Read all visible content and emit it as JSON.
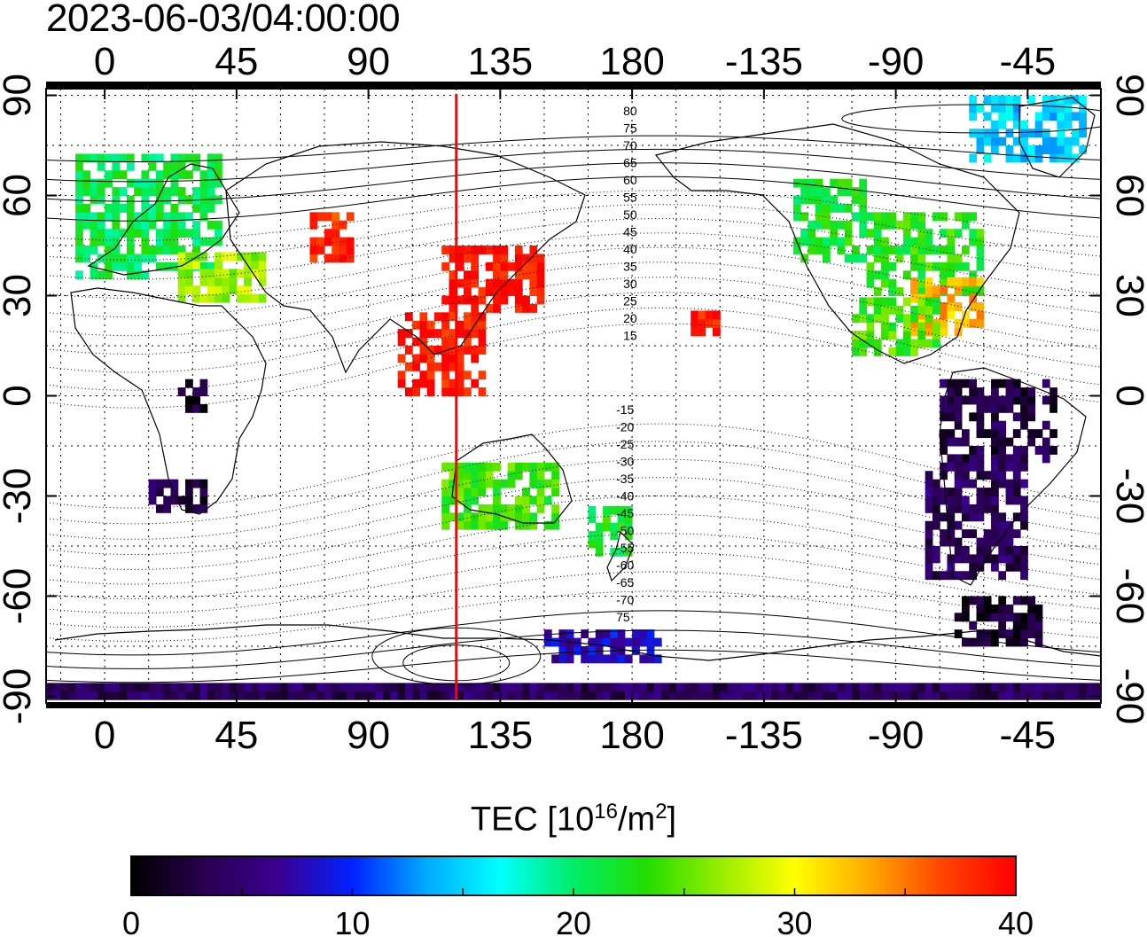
{
  "title": "2023-06-03/04:00:00",
  "map": {
    "type": "global-tec-map",
    "lon_ticks_top": [
      "0",
      "45",
      "90",
      "135",
      "180",
      "-135",
      "-90",
      "-45"
    ],
    "lon_ticks_bottom": [
      "0",
      "45",
      "90",
      "135",
      "180",
      "-135",
      "-90",
      "-45"
    ],
    "lat_ticks_left": [
      "90",
      "60",
      "30",
      "0",
      "-30",
      "-60",
      "-90"
    ],
    "lat_ticks_right": [
      "90",
      "60",
      "30",
      "0",
      "-30",
      "-60",
      "-90"
    ],
    "lon_ticks_values": [
      0,
      45,
      90,
      135,
      180,
      225,
      270,
      315
    ],
    "lat_ticks_values": [
      90,
      60,
      30,
      0,
      -30,
      -60,
      -90
    ],
    "lon_range": [
      -20,
      340
    ],
    "lat_range": [
      -92,
      92
    ],
    "grid": "dotted, every 15 degrees",
    "marker_line_lon": 120,
    "marker_line_color": "#ff0000",
    "contour_labels_north": [
      "80",
      "75",
      "70",
      "65",
      "60",
      "55",
      "50",
      "45",
      "40",
      "35",
      "30",
      "25",
      "20",
      "15"
    ],
    "contour_labels_south": [
      "-15",
      "-20",
      "-25",
      "-30",
      "-35",
      "-40",
      "-45",
      "-50",
      "-55",
      "-60",
      "-65",
      "-70",
      "75"
    ]
  },
  "colorbar": {
    "title_main": "TEC  [10",
    "title_exp": "16",
    "title_unit": "/m",
    "title_unit_exp": "2",
    "title_close": "]",
    "min": 0,
    "max": 40,
    "tick_labels": [
      "0",
      "10",
      "20",
      "30",
      "40"
    ],
    "colors": [
      "#000000",
      "#2a0050",
      "#3a0090",
      "#0022ff",
      "#00aaff",
      "#00ffff",
      "#00ee66",
      "#22dd00",
      "#99ee00",
      "#ffff00",
      "#ffaa00",
      "#ff4400",
      "#ff0000"
    ]
  },
  "tec_regions": [
    {
      "name": "arctic-canada",
      "lon": [
        295,
        335
      ],
      "lat": [
        70,
        88
      ],
      "tec": 15
    },
    {
      "name": "north-america-west",
      "lon": [
        235,
        260
      ],
      "lat": [
        40,
        65
      ],
      "tec": 22
    },
    {
      "name": "north-america-east",
      "lon": [
        260,
        300
      ],
      "lat": [
        30,
        55
      ],
      "tec": 23
    },
    {
      "name": "north-america-southeast",
      "lon": [
        275,
        300
      ],
      "lat": [
        18,
        35
      ],
      "tec": 33
    },
    {
      "name": "central-america",
      "lon": [
        255,
        285
      ],
      "lat": [
        12,
        28
      ],
      "tec": 24
    },
    {
      "name": "south-america-north",
      "lon": [
        285,
        325
      ],
      "lat": [
        -20,
        5
      ],
      "tec": 3
    },
    {
      "name": "south-america-south",
      "lon": [
        280,
        315
      ],
      "lat": [
        -55,
        -20
      ],
      "tec": 4
    },
    {
      "name": "europe",
      "lon": [
        -10,
        40
      ],
      "lat": [
        35,
        72
      ],
      "tec": 21
    },
    {
      "name": "mediterranean",
      "lon": [
        25,
        55
      ],
      "lat": [
        28,
        42
      ],
      "tec": 27
    },
    {
      "name": "east-asia",
      "lon": [
        115,
        150
      ],
      "lat": [
        25,
        45
      ],
      "tec": 39
    },
    {
      "name": "southeast-asia",
      "lon": [
        100,
        130
      ],
      "lat": [
        0,
        25
      ],
      "tec": 39
    },
    {
      "name": "central-asia",
      "lon": [
        70,
        85
      ],
      "lat": [
        40,
        55
      ],
      "tec": 38
    },
    {
      "name": "australia",
      "lon": [
        115,
        155
      ],
      "lat": [
        -40,
        -20
      ],
      "tec": 24
    },
    {
      "name": "new-zealand",
      "lon": [
        165,
        180
      ],
      "lat": [
        -48,
        -35
      ],
      "tec": 22
    },
    {
      "name": "south-africa",
      "lon": [
        15,
        35
      ],
      "lat": [
        -35,
        -25
      ],
      "tec": 3
    },
    {
      "name": "central-africa",
      "lon": [
        25,
        35
      ],
      "lat": [
        -5,
        5
      ],
      "tec": 2
    },
    {
      "name": "hawaii",
      "lon": [
        200,
        210
      ],
      "lat": [
        18,
        25
      ],
      "tec": 39
    },
    {
      "name": "antarctic-strip",
      "lon": [
        -20,
        340
      ],
      "lat": [
        -91,
        -88
      ],
      "tec": 4
    },
    {
      "name": "antarctic-peninsula",
      "lon": [
        290,
        320
      ],
      "lat": [
        -75,
        -62
      ],
      "tec": 2
    },
    {
      "name": "ross-sea",
      "lon": [
        150,
        190
      ],
      "lat": [
        -80,
        -70
      ],
      "tec": 8
    }
  ]
}
